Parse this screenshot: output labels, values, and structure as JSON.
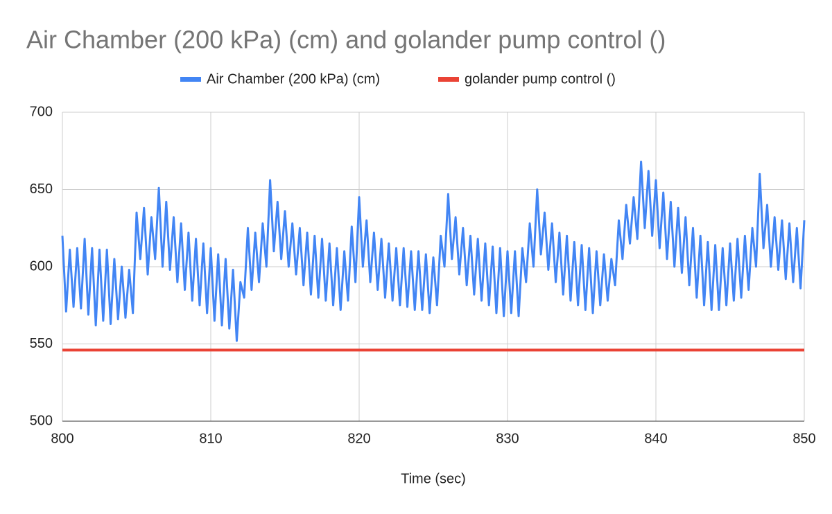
{
  "chart_data": {
    "type": "line",
    "title": "Air Chamber (200 kPa) (cm) and golander pump control  ()",
    "x_label": "Time (sec)",
    "x": [
      800,
      800.25,
      800.5,
      800.75,
      801,
      801.25,
      801.5,
      801.75,
      802,
      802.25,
      802.5,
      802.75,
      803,
      803.25,
      803.5,
      803.75,
      804,
      804.25,
      804.5,
      804.75,
      805,
      805.25,
      805.5,
      805.75,
      806,
      806.25,
      806.5,
      806.75,
      807,
      807.25,
      807.5,
      807.75,
      808,
      808.25,
      808.5,
      808.75,
      809,
      809.25,
      809.5,
      809.75,
      810,
      810.25,
      810.5,
      810.75,
      811,
      811.25,
      811.5,
      811.75,
      812,
      812.25,
      812.5,
      812.75,
      813,
      813.25,
      813.5,
      813.75,
      814,
      814.25,
      814.5,
      814.75,
      815,
      815.25,
      815.5,
      815.75,
      816,
      816.25,
      816.5,
      816.75,
      817,
      817.25,
      817.5,
      817.75,
      818,
      818.25,
      818.5,
      818.75,
      819,
      819.25,
      819.5,
      819.75,
      820,
      820.25,
      820.5,
      820.75,
      821,
      821.25,
      821.5,
      821.75,
      822,
      822.25,
      822.5,
      822.75,
      823,
      823.25,
      823.5,
      823.75,
      824,
      824.25,
      824.5,
      824.75,
      825,
      825.25,
      825.5,
      825.75,
      826,
      826.25,
      826.5,
      826.75,
      827,
      827.25,
      827.5,
      827.75,
      828,
      828.25,
      828.5,
      828.75,
      829,
      829.25,
      829.5,
      829.75,
      830,
      830.25,
      830.5,
      830.75,
      831,
      831.25,
      831.5,
      831.75,
      832,
      832.25,
      832.5,
      832.75,
      833,
      833.25,
      833.5,
      833.75,
      834,
      834.25,
      834.5,
      834.75,
      835,
      835.25,
      835.5,
      835.75,
      836,
      836.25,
      836.5,
      836.75,
      837,
      837.25,
      837.5,
      837.75,
      838,
      838.25,
      838.5,
      838.75,
      839,
      839.25,
      839.5,
      839.75,
      840,
      840.25,
      840.5,
      840.75,
      841,
      841.25,
      841.5,
      841.75,
      842,
      842.25,
      842.5,
      842.75,
      843,
      843.25,
      843.5,
      843.75,
      844,
      844.25,
      844.5,
      844.75,
      845,
      845.25,
      845.5,
      845.75,
      846,
      846.25,
      846.5,
      846.75,
      847,
      847.25,
      847.5,
      847.75,
      848,
      848.25,
      848.5,
      848.75,
      849,
      849.25,
      849.5,
      849.75,
      850
    ],
    "series": [
      {
        "name": "Air Chamber (200 kPa) (cm)",
        "color": "#4285f4",
        "values": [
          620,
          571,
          611,
          574,
          612,
          573,
          618,
          569,
          612,
          562,
          611,
          565,
          611,
          563,
          605,
          566,
          600,
          567,
          598,
          570,
          635,
          605,
          638,
          595,
          632,
          605,
          651,
          600,
          642,
          598,
          632,
          590,
          628,
          585,
          622,
          578,
          618,
          575,
          615,
          570,
          612,
          565,
          608,
          562,
          605,
          560,
          598,
          552,
          590,
          580,
          625,
          585,
          622,
          590,
          628,
          600,
          656,
          610,
          642,
          605,
          636,
          600,
          628,
          595,
          625,
          588,
          622,
          582,
          620,
          580,
          618,
          578,
          615,
          575,
          612,
          572,
          610,
          578,
          626,
          590,
          645,
          600,
          630,
          590,
          622,
          585,
          618,
          580,
          615,
          578,
          612,
          575,
          612,
          574,
          610,
          572,
          610,
          572,
          608,
          570,
          606,
          575,
          620,
          600,
          647,
          605,
          632,
          595,
          625,
          588,
          620,
          582,
          618,
          578,
          615,
          575,
          613,
          570,
          612,
          568,
          610,
          570,
          610,
          568,
          612,
          590,
          628,
          600,
          650,
          608,
          635,
          598,
          628,
          590,
          622,
          582,
          620,
          578,
          616,
          575,
          614,
          572,
          612,
          570,
          610,
          575,
          608,
          578,
          605,
          588,
          630,
          605,
          640,
          615,
          645,
          618,
          668,
          625,
          662,
          620,
          656,
          612,
          648,
          605,
          642,
          600,
          638,
          596,
          632,
          588,
          625,
          580,
          620,
          575,
          616,
          572,
          614,
          572,
          612,
          575,
          615,
          578,
          618,
          580,
          620,
          585,
          625,
          600,
          660,
          612,
          640,
          600,
          632,
          598,
          630,
          592,
          628,
          590,
          625,
          586,
          630
        ]
      },
      {
        "name": "golander pump control  ()",
        "color": "#ea4335",
        "values": [
          546,
          546,
          546,
          546,
          546,
          546,
          546,
          546,
          546,
          546,
          546,
          546,
          546,
          546,
          546,
          546,
          546,
          546,
          546,
          546,
          546,
          546,
          546,
          546,
          546,
          546,
          546,
          546,
          546,
          546,
          546,
          546,
          546,
          546,
          546,
          546,
          546,
          546,
          546,
          546,
          546,
          546,
          546,
          546,
          546,
          546,
          546,
          546,
          546,
          546,
          546,
          546,
          546,
          546,
          546,
          546,
          546,
          546,
          546,
          546,
          546,
          546,
          546,
          546,
          546,
          546,
          546,
          546,
          546,
          546,
          546,
          546,
          546,
          546,
          546,
          546,
          546,
          546,
          546,
          546,
          546,
          546,
          546,
          546,
          546,
          546,
          546,
          546,
          546,
          546,
          546,
          546,
          546,
          546,
          546,
          546,
          546,
          546,
          546,
          546,
          546,
          546,
          546,
          546,
          546,
          546,
          546,
          546,
          546,
          546,
          546,
          546,
          546,
          546,
          546,
          546,
          546,
          546,
          546,
          546,
          546,
          546,
          546,
          546,
          546,
          546,
          546,
          546,
          546,
          546,
          546,
          546,
          546,
          546,
          546,
          546,
          546,
          546,
          546,
          546,
          546,
          546,
          546,
          546,
          546,
          546,
          546,
          546,
          546,
          546,
          546,
          546,
          546,
          546,
          546,
          546,
          546,
          546,
          546,
          546,
          546,
          546,
          546,
          546,
          546,
          546,
          546,
          546,
          546,
          546,
          546,
          546,
          546,
          546,
          546,
          546,
          546,
          546,
          546,
          546,
          546,
          546,
          546,
          546,
          546,
          546,
          546,
          546,
          546,
          546,
          546,
          546,
          546,
          546,
          546,
          546,
          546,
          546,
          546,
          546,
          546
        ]
      }
    ],
    "xlim": [
      800,
      850
    ],
    "xticks": [
      800,
      810,
      820,
      830,
      840,
      850
    ],
    "ylim": [
      500,
      700
    ],
    "yticks": [
      500,
      550,
      600,
      650,
      700
    ],
    "grid": true,
    "legend": "top"
  }
}
